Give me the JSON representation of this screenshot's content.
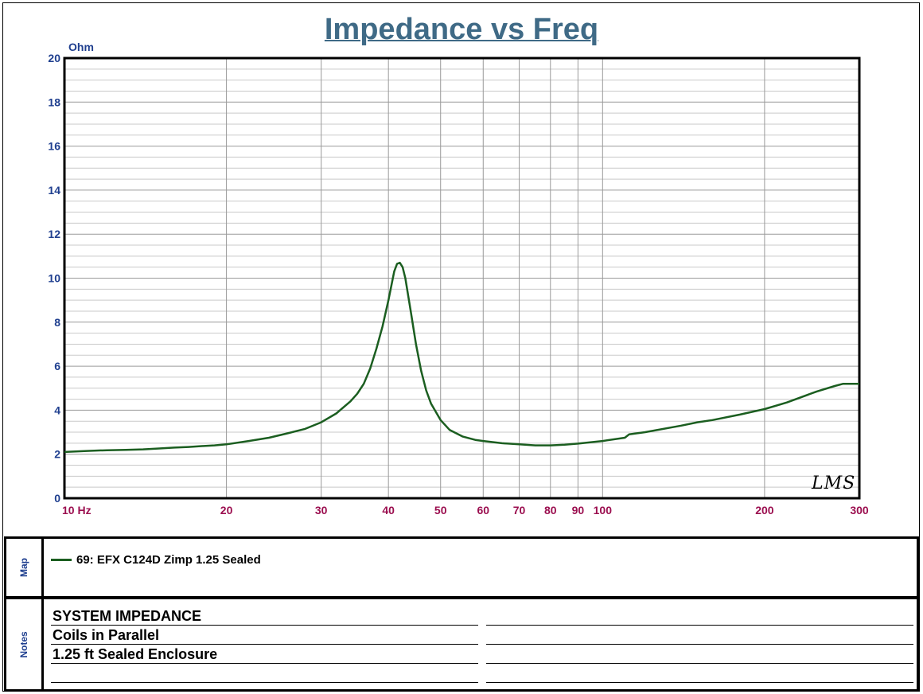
{
  "title": "Impedance vs Freq",
  "chart_data": {
    "type": "line",
    "title": "Impedance vs Freq",
    "ylabel": "Ohm",
    "xlabel": "",
    "x_scale": "log",
    "xlim": [
      10,
      300
    ],
    "ylim": [
      0,
      20
    ],
    "grid": true,
    "y_ticks": [
      0,
      2,
      4,
      6,
      8,
      10,
      12,
      14,
      16,
      18,
      20
    ],
    "x_ticks": [
      {
        "value": 10,
        "label": "10 Hz"
      },
      {
        "value": 20,
        "label": "20"
      },
      {
        "value": 30,
        "label": "30"
      },
      {
        "value": 40,
        "label": "40"
      },
      {
        "value": 50,
        "label": "50"
      },
      {
        "value": 60,
        "label": "60"
      },
      {
        "value": 70,
        "label": "70"
      },
      {
        "value": 80,
        "label": "80"
      },
      {
        "value": 90,
        "label": "90"
      },
      {
        "value": 100,
        "label": "100"
      },
      {
        "value": 200,
        "label": "200"
      },
      {
        "value": 300,
        "label": "300"
      }
    ],
    "series": [
      {
        "name": "69: EFX C124D Zimp 1.25 Sealed",
        "color": "#1b5e20",
        "x": [
          10,
          11,
          12,
          13,
          14,
          15,
          16,
          17,
          18,
          19,
          20,
          22,
          24,
          26,
          28,
          30,
          32,
          34,
          35,
          36,
          37,
          38,
          39,
          40,
          41,
          41.5,
          42,
          42.5,
          43,
          44,
          45,
          46,
          47,
          48,
          50,
          52,
          55,
          58,
          60,
          65,
          70,
          75,
          80,
          85,
          90,
          100,
          110,
          112,
          120,
          140,
          150,
          160,
          180,
          200,
          220,
          250,
          270,
          280,
          300
        ],
        "y": [
          2.1,
          2.15,
          2.18,
          2.2,
          2.22,
          2.26,
          2.3,
          2.33,
          2.37,
          2.4,
          2.45,
          2.6,
          2.75,
          2.95,
          3.15,
          3.45,
          3.85,
          4.4,
          4.75,
          5.2,
          5.9,
          6.8,
          7.8,
          9.0,
          10.3,
          10.65,
          10.7,
          10.5,
          10.0,
          8.5,
          7.0,
          5.8,
          4.9,
          4.3,
          3.55,
          3.1,
          2.8,
          2.65,
          2.6,
          2.5,
          2.45,
          2.4,
          2.4,
          2.43,
          2.48,
          2.6,
          2.75,
          2.9,
          3.0,
          3.3,
          3.45,
          3.55,
          3.8,
          4.05,
          4.35,
          4.85,
          5.1,
          5.2,
          5.2
        ]
      }
    ]
  },
  "map": {
    "label": "Map",
    "legend_entry": "69: EFX C124D Zimp 1.25 Sealed",
    "legend_color": "#1b5e20"
  },
  "notes": {
    "label": "Notes",
    "lines": [
      "SYSTEM IMPEDANCE",
      "Coils in Parallel",
      "1.25 ft Sealed Enclosure",
      ""
    ]
  },
  "watermark": "LMS",
  "colors": {
    "title": "#3f6a86",
    "y_axis_labels": "#1f3f8f",
    "x_axis_labels": "#9b0e4f",
    "grid": "#b8b8b8",
    "curve": "#1b5e20"
  }
}
